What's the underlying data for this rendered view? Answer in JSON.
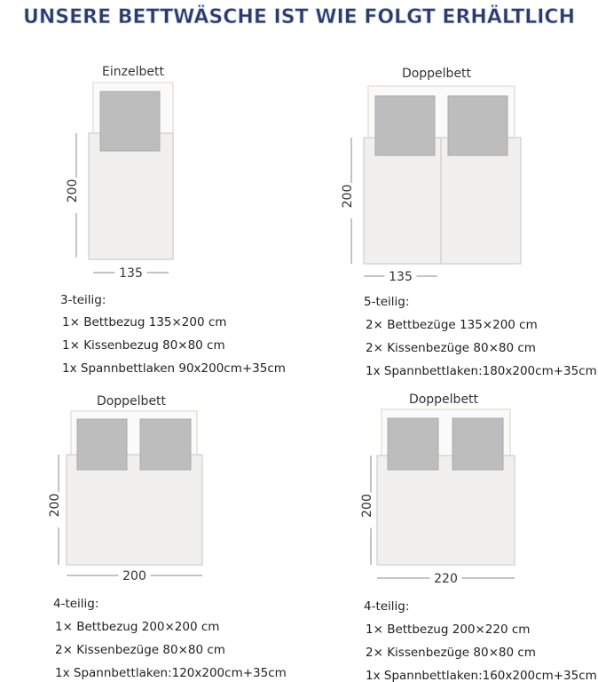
{
  "header": {
    "title": "UNSERE BETTWÄSCHE IST WIE FOLGT ERHÄLTLICH"
  },
  "panels": [
    {
      "bed": "Einzelbett",
      "height": "200",
      "width": "135",
      "set": "3-teilig:",
      "items": [
        "1× Bettbezug 135×200 cm",
        "1× Kissenbezug 80×80 cm",
        "1x Spannbettlaken 90x200cm+35cm"
      ]
    },
    {
      "bed": "Doppelbett",
      "height": "200",
      "width": "135",
      "set": "5-teilig:",
      "items": [
        "2× Bettbezüge 135×200 cm",
        "2× Kissenbezüge 80×80 cm",
        "1x Spannbettlaken:180x200cm+35cm"
      ]
    },
    {
      "bed": "Doppelbett",
      "height": "200",
      "width": "200",
      "set": "4-teilig:",
      "items": [
        "1× Bettbezug 200×200 cm",
        "2× Kissenbezüge 80×80 cm",
        "1x Spannbettlaken:120x200cm+35cm"
      ]
    },
    {
      "bed": "Doppelbett",
      "height": "200",
      "width": "220",
      "set": "4-teilig:",
      "items": [
        "1× Bettbezug 200×220 cm",
        "2× Kissenbezüge 80×80 cm",
        "1x Spannbettlaken:160x200cm+35cm"
      ]
    }
  ]
}
